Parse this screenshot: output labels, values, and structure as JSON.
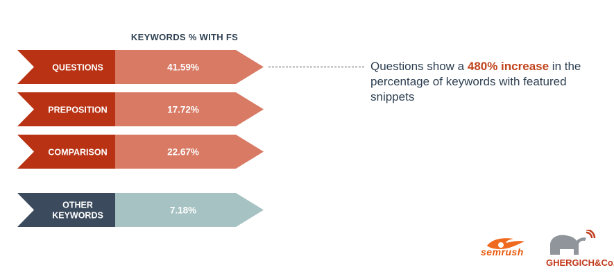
{
  "chart_data": {
    "type": "bar",
    "title": "KEYWORDS % WITH FS",
    "categories": [
      "QUESTIONS",
      "PREPOSITION",
      "COMPARISON",
      "OTHER KEYWORDS"
    ],
    "values": [
      41.59,
      17.72,
      22.67,
      7.18
    ],
    "value_labels": [
      "41.59%",
      "17.72%",
      "22.67%",
      "7.18%"
    ],
    "colors": {
      "label_fill": [
        "#b83213",
        "#b83213",
        "#b83213",
        "#3b4a5c"
      ],
      "value_fill": [
        "#d87a64",
        "#d87a64",
        "#d87a64",
        "#a7c2c3"
      ]
    }
  },
  "callout": {
    "prefix": "Questions show a ",
    "highlight": "480% increase",
    "suffix": " in the percentage of keywords with featured snippets"
  },
  "logos": {
    "semrush": "semrush",
    "ghergich": "GHERGICH&Co."
  }
}
